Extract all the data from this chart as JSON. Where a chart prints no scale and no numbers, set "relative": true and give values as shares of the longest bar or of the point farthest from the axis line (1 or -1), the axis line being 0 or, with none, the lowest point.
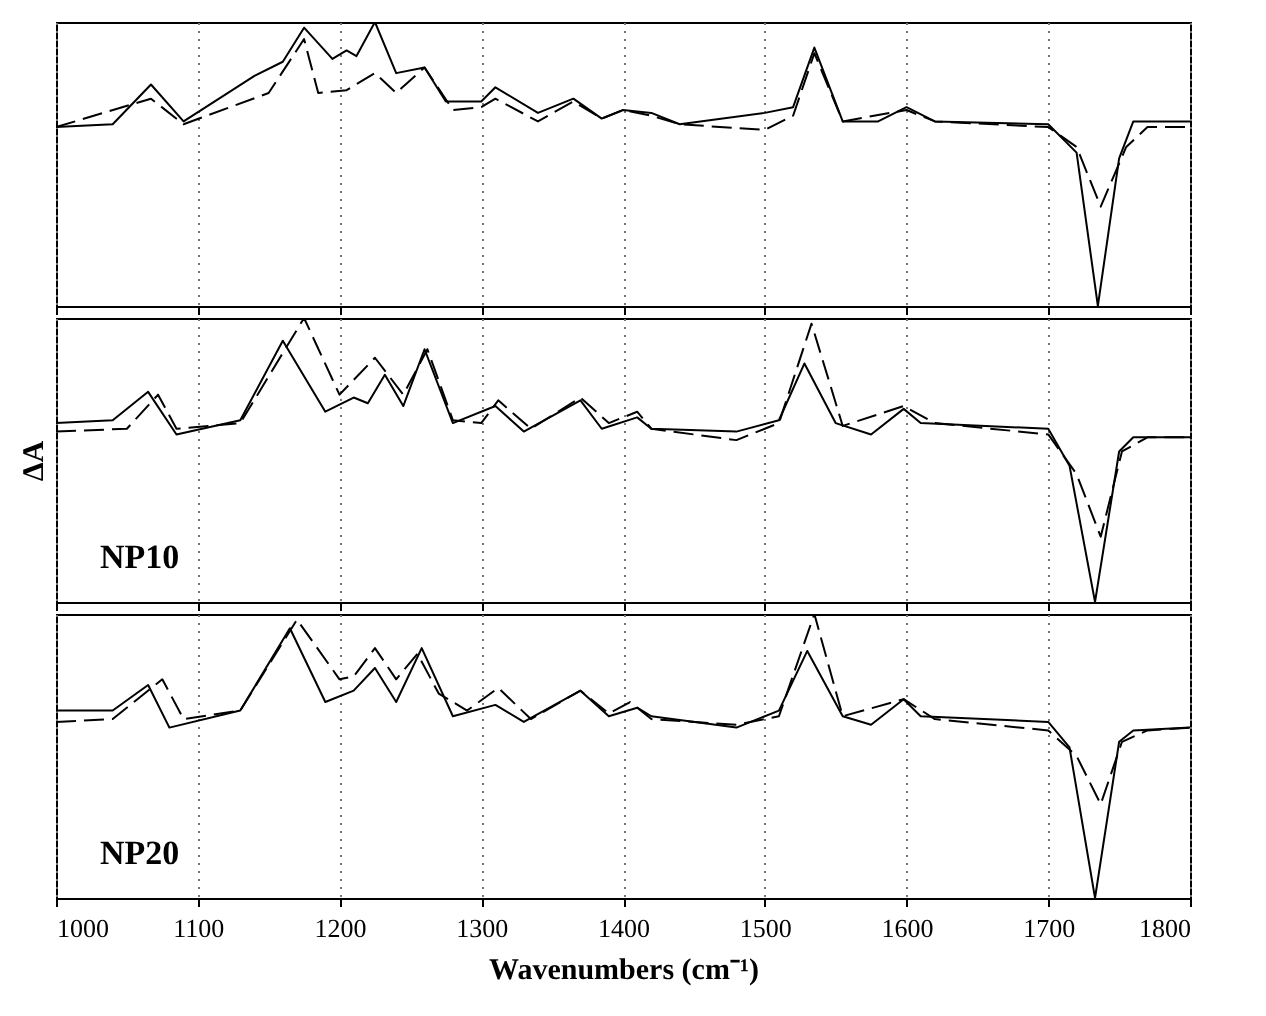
{
  "chart_data": [
    {
      "type": "line",
      "relative": true,
      "xlim": [
        1000,
        1800
      ],
      "xticks": [
        1000,
        1100,
        1200,
        1300,
        1400,
        1500,
        1600,
        1700,
        1800
      ],
      "grid": "x",
      "tick_labels": false,
      "series": [
        {
          "color": "#000000",
          "line_style": "solid",
          "x": [
            1000,
            1040,
            1067,
            1090,
            1140,
            1160,
            1175,
            1195,
            1205,
            1212,
            1225,
            1240,
            1260,
            1275,
            1300,
            1310,
            1340,
            1365,
            1385,
            1400,
            1420,
            1440,
            1500,
            1520,
            1535,
            1555,
            1580,
            1600,
            1620,
            1700,
            1720,
            1735,
            1750,
            1760,
            1800
          ],
          "values": [
            0.63,
            0.64,
            0.78,
            0.65,
            0.81,
            0.86,
            0.98,
            0.87,
            0.9,
            0.88,
            1,
            0.82,
            0.84,
            0.72,
            0.72,
            0.77,
            0.68,
            0.73,
            0.66,
            0.69,
            0.68,
            0.64,
            0.68,
            0.7,
            0.91,
            0.65,
            0.65,
            0.7,
            0.65,
            0.64,
            0.54,
            0,
            0.52,
            0.65,
            0.65
          ]
        },
        {
          "color": "#000000",
          "line_style": "dashed",
          "x": [
            1000,
            1067,
            1090,
            1150,
            1175,
            1185,
            1205,
            1225,
            1240,
            1260,
            1280,
            1300,
            1310,
            1340,
            1365,
            1385,
            1400,
            1420,
            1440,
            1500,
            1520,
            1535,
            1555,
            1600,
            1620,
            1700,
            1720,
            1737,
            1755,
            1770,
            1800
          ],
          "values": [
            0.63,
            0.73,
            0.64,
            0.75,
            0.94,
            0.75,
            0.76,
            0.82,
            0.75,
            0.84,
            0.69,
            0.7,
            0.73,
            0.65,
            0.72,
            0.66,
            0.69,
            0.67,
            0.64,
            0.62,
            0.67,
            0.89,
            0.65,
            0.69,
            0.65,
            0.63,
            0.56,
            0.35,
            0.56,
            0.63,
            0.63
          ]
        }
      ]
    },
    {
      "type": "line",
      "relative": true,
      "ylabel": "ΔA",
      "annotations": [
        "NP10"
      ],
      "xlim": [
        1000,
        1800
      ],
      "xticks": [
        1000,
        1100,
        1200,
        1300,
        1400,
        1500,
        1600,
        1700,
        1800
      ],
      "grid": "x",
      "tick_labels": false,
      "series": [
        {
          "color": "#000000",
          "line_style": "solid",
          "x": [
            1000,
            1040,
            1065,
            1085,
            1130,
            1160,
            1190,
            1210,
            1220,
            1232,
            1245,
            1260,
            1280,
            1310,
            1330,
            1370,
            1385,
            1410,
            1420,
            1480,
            1510,
            1528,
            1550,
            1575,
            1598,
            1610,
            1700,
            1715,
            1733,
            1750,
            1760,
            1800
          ],
          "values": [
            0.63,
            0.64,
            0.74,
            0.59,
            0.64,
            0.92,
            0.67,
            0.72,
            0.7,
            0.8,
            0.69,
            0.89,
            0.63,
            0.69,
            0.6,
            0.71,
            0.61,
            0.65,
            0.61,
            0.6,
            0.64,
            0.84,
            0.63,
            0.59,
            0.68,
            0.63,
            0.61,
            0.48,
            0,
            0.53,
            0.58,
            0.58
          ]
        },
        {
          "color": "#000000",
          "line_style": "dashed",
          "x": [
            1000,
            1050,
            1072,
            1085,
            1130,
            1175,
            1200,
            1225,
            1245,
            1262,
            1280,
            1300,
            1312,
            1335,
            1370,
            1390,
            1410,
            1420,
            1480,
            1510,
            1533,
            1555,
            1598,
            1620,
            1700,
            1720,
            1737,
            1752,
            1770,
            1800
          ],
          "values": [
            0.6,
            0.61,
            0.73,
            0.61,
            0.63,
            1,
            0.73,
            0.86,
            0.73,
            0.89,
            0.64,
            0.63,
            0.71,
            0.61,
            0.72,
            0.63,
            0.67,
            0.61,
            0.57,
            0.63,
            0.98,
            0.62,
            0.69,
            0.63,
            0.59,
            0.45,
            0.23,
            0.53,
            0.58,
            0.58
          ]
        }
      ]
    },
    {
      "type": "line",
      "relative": true,
      "xlabel": "Wavenumbers (cm⁻¹)",
      "annotations": [
        "NP20"
      ],
      "xlim": [
        1000,
        1800
      ],
      "xticks": [
        1000,
        1100,
        1200,
        1300,
        1400,
        1500,
        1600,
        1700,
        1800
      ],
      "grid": "x",
      "tick_labels": "x",
      "series": [
        {
          "color": "#000000",
          "line_style": "solid",
          "x": [
            1000,
            1040,
            1065,
            1080,
            1130,
            1165,
            1190,
            1210,
            1225,
            1240,
            1258,
            1280,
            1310,
            1330,
            1370,
            1390,
            1410,
            1420,
            1480,
            1510,
            1530,
            1555,
            1575,
            1598,
            1610,
            1700,
            1715,
            1733,
            1750,
            1760,
            1800
          ],
          "values": [
            0.66,
            0.66,
            0.75,
            0.6,
            0.66,
            0.95,
            0.69,
            0.73,
            0.81,
            0.69,
            0.88,
            0.64,
            0.68,
            0.62,
            0.73,
            0.64,
            0.67,
            0.64,
            0.6,
            0.66,
            0.87,
            0.64,
            0.61,
            0.7,
            0.64,
            0.62,
            0.53,
            0,
            0.55,
            0.59,
            0.6
          ]
        },
        {
          "color": "#000000",
          "line_style": "dashed",
          "x": [
            1000,
            1040,
            1075,
            1090,
            1130,
            1170,
            1200,
            1210,
            1225,
            1240,
            1255,
            1270,
            1290,
            1312,
            1335,
            1370,
            1390,
            1405,
            1420,
            1480,
            1510,
            1535,
            1555,
            1598,
            1620,
            1700,
            1720,
            1737,
            1752,
            1770,
            1800
          ],
          "values": [
            0.62,
            0.63,
            0.77,
            0.63,
            0.66,
            0.98,
            0.77,
            0.78,
            0.88,
            0.77,
            0.86,
            0.72,
            0.66,
            0.74,
            0.63,
            0.73,
            0.65,
            0.69,
            0.63,
            0.61,
            0.64,
            1,
            0.64,
            0.7,
            0.63,
            0.59,
            0.5,
            0.33,
            0.55,
            0.59,
            0.6
          ]
        }
      ]
    }
  ]
}
